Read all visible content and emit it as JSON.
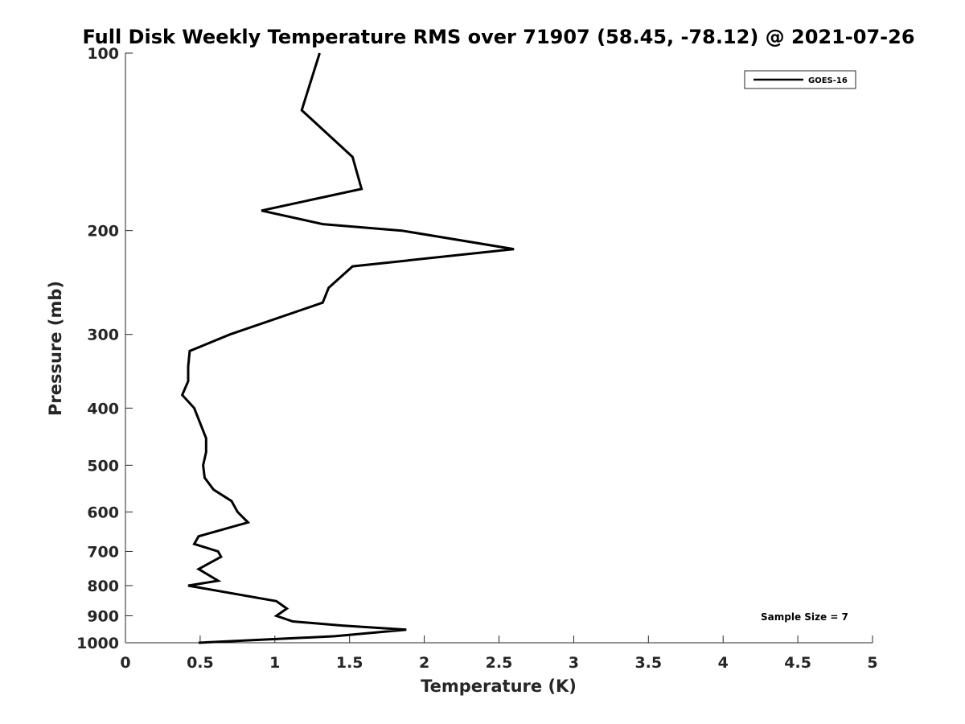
{
  "chart_data": {
    "type": "line",
    "title": "Full Disk Weekly Temperature RMS over 71907 (58.45, -78.12) @ 2021-07-26",
    "xlabel": "Temperature (K)",
    "ylabel": "Pressure (mb)",
    "xlim": [
      0,
      5
    ],
    "ylim": [
      100,
      1000
    ],
    "y_scale": "log",
    "y_reversed": true,
    "grid": false,
    "legend_position": "top-right",
    "x_ticks": [
      "0",
      "0.5",
      "1",
      "1.5",
      "2",
      "2.5",
      "3",
      "3.5",
      "4",
      "4.5",
      "5"
    ],
    "y_ticks": [
      "100",
      "200",
      "300",
      "400",
      "500",
      "600",
      "700",
      "800",
      "900",
      "1000"
    ],
    "series": [
      {
        "name": "GOES-16",
        "color": "#000000",
        "points": [
          {
            "x": 1.3,
            "p": 100
          },
          {
            "x": 1.18,
            "p": 125
          },
          {
            "x": 1.52,
            "p": 150
          },
          {
            "x": 1.58,
            "p": 170
          },
          {
            "x": 0.91,
            "p": 185
          },
          {
            "x": 1.32,
            "p": 195
          },
          {
            "x": 1.85,
            "p": 200
          },
          {
            "x": 2.6,
            "p": 215
          },
          {
            "x": 1.52,
            "p": 230
          },
          {
            "x": 1.36,
            "p": 250
          },
          {
            "x": 1.32,
            "p": 265
          },
          {
            "x": 0.7,
            "p": 300
          },
          {
            "x": 0.43,
            "p": 320
          },
          {
            "x": 0.42,
            "p": 340
          },
          {
            "x": 0.42,
            "p": 360
          },
          {
            "x": 0.38,
            "p": 380
          },
          {
            "x": 0.46,
            "p": 400
          },
          {
            "x": 0.54,
            "p": 450
          },
          {
            "x": 0.54,
            "p": 475
          },
          {
            "x": 0.52,
            "p": 500
          },
          {
            "x": 0.53,
            "p": 525
          },
          {
            "x": 0.59,
            "p": 550
          },
          {
            "x": 0.71,
            "p": 575
          },
          {
            "x": 0.75,
            "p": 600
          },
          {
            "x": 0.82,
            "p": 625
          },
          {
            "x": 0.49,
            "p": 660
          },
          {
            "x": 0.46,
            "p": 680
          },
          {
            "x": 0.62,
            "p": 700
          },
          {
            "x": 0.64,
            "p": 715
          },
          {
            "x": 0.49,
            "p": 750
          },
          {
            "x": 0.62,
            "p": 785
          },
          {
            "x": 0.42,
            "p": 800
          },
          {
            "x": 1.01,
            "p": 850
          },
          {
            "x": 1.08,
            "p": 875
          },
          {
            "x": 1.01,
            "p": 900
          },
          {
            "x": 1.12,
            "p": 920
          },
          {
            "x": 1.45,
            "p": 935
          },
          {
            "x": 1.88,
            "p": 950
          },
          {
            "x": 1.4,
            "p": 975
          },
          {
            "x": 0.49,
            "p": 1000
          }
        ]
      }
    ],
    "annotation": "Sample Size = 7"
  }
}
